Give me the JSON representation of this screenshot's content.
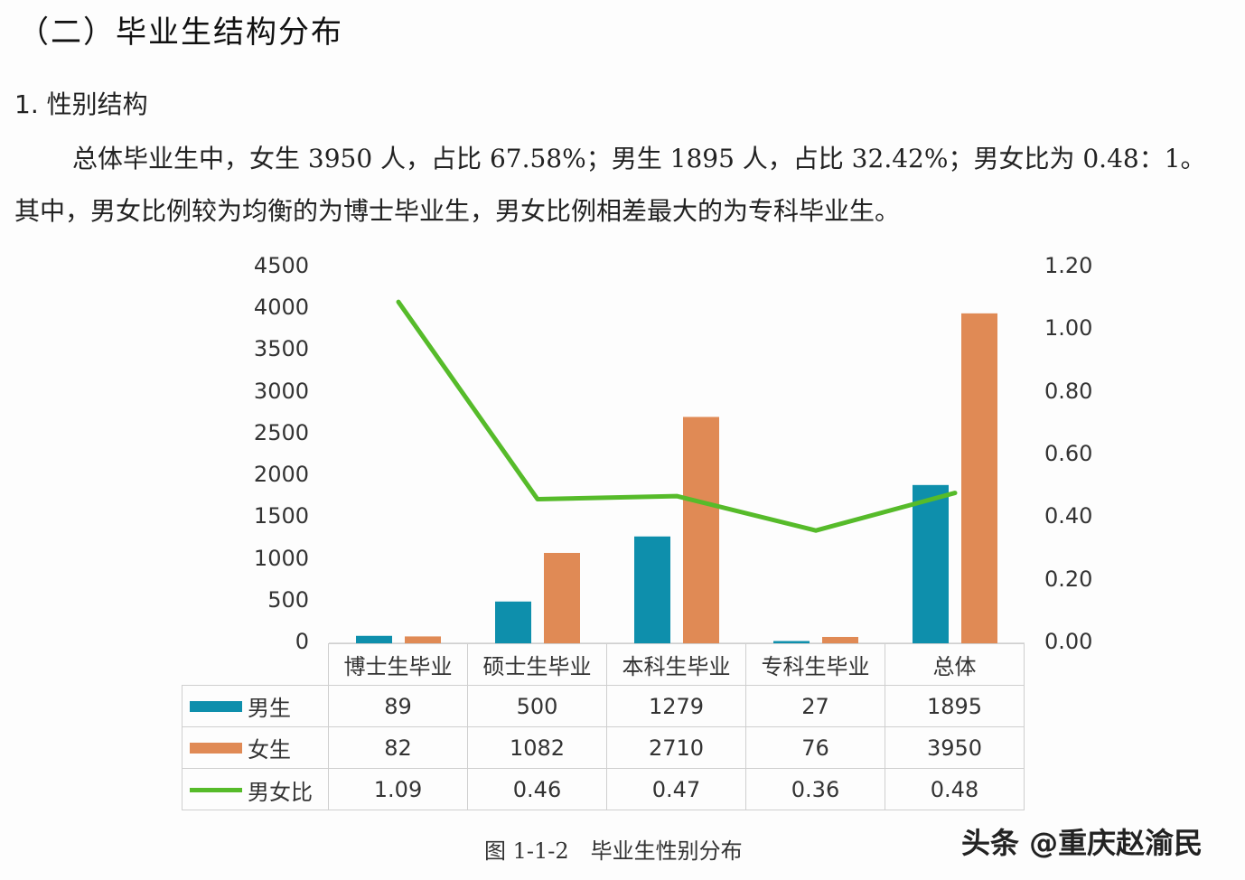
{
  "section_title": "（二）毕业生结构分布",
  "subsection_title": "1. 性别结构",
  "paragraph": {
    "line1": "总体毕业生中，女生 3950 人，占比 67.58%；男生 1895 人，占比 32.42%；男女比为 0.48：1。",
    "line2": "其中，男女比例较为均衡的为博士毕业生，男女比例相差最大的为专科毕业生。"
  },
  "figure_caption": "图 1-1-2　毕业生性别分布",
  "watermark": "头条 @重庆赵渝民",
  "colors": {
    "male": "#0e8fac",
    "female": "#e08a55",
    "ratio": "#56bb2a"
  },
  "chart_data": {
    "type": "bar",
    "title": "毕业生性别分布",
    "categories": [
      "博士生毕业",
      "硕士生毕业",
      "本科生毕业",
      "专科生毕业",
      "总体"
    ],
    "series": [
      {
        "name": "男生",
        "type": "bar",
        "axis": "left",
        "values": [
          89,
          500,
          1279,
          27,
          1895
        ]
      },
      {
        "name": "女生",
        "type": "bar",
        "axis": "left",
        "values": [
          82,
          1082,
          2710,
          76,
          3950
        ]
      },
      {
        "name": "男女比",
        "type": "line",
        "axis": "right",
        "values": [
          1.09,
          0.46,
          0.47,
          0.36,
          0.48
        ]
      }
    ],
    "left_axis": {
      "ylim": [
        0,
        4500
      ],
      "ticks": [
        "4500",
        "4000",
        "3500",
        "3000",
        "2500",
        "2000",
        "1500",
        "1000",
        "500",
        "0"
      ]
    },
    "right_axis": {
      "ylim": [
        0,
        1.2
      ],
      "ticks": [
        "1.20",
        "1.00",
        "0.80",
        "0.60",
        "0.40",
        "0.20",
        "0.00"
      ]
    },
    "xlabel": "",
    "ylabel": "",
    "legend_position": "data-table-left",
    "grid": false,
    "data_table": {
      "rows": [
        {
          "label": "男生",
          "values": [
            "89",
            "500",
            "1279",
            "27",
            "1895"
          ]
        },
        {
          "label": "女生",
          "values": [
            "82",
            "1082",
            "2710",
            "76",
            "3950"
          ]
        },
        {
          "label": "男女比",
          "values": [
            "1.09",
            "0.46",
            "0.47",
            "0.36",
            "0.48"
          ]
        }
      ]
    }
  }
}
